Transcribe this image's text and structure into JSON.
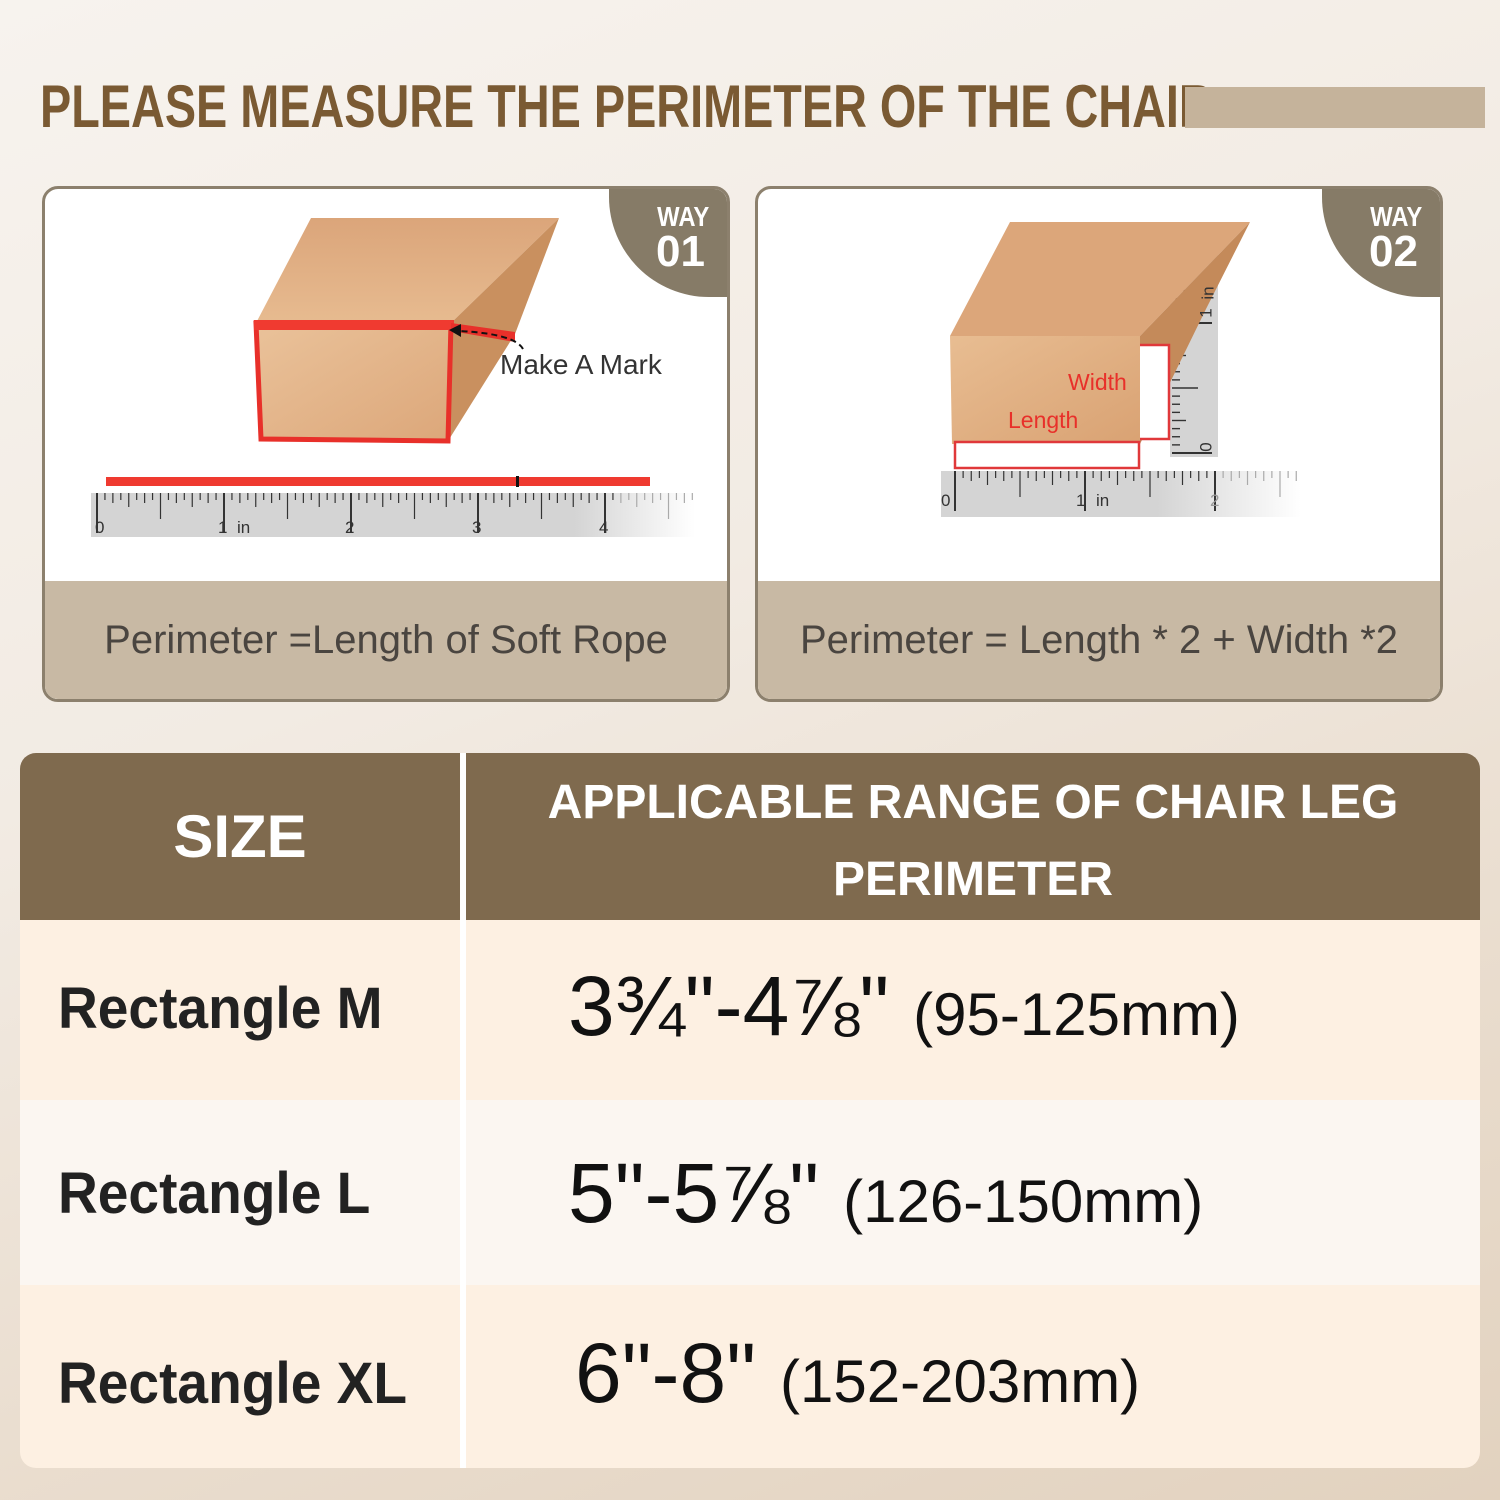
{
  "title": "PLEASE MEASURE THE PERIMETER OF THE CHAIR",
  "colors": {
    "brand_brown": "#7f6a4e",
    "title_brown": "#7a5a33",
    "accent_red": "#e8302a",
    "caption_bg": "#c8b9a4"
  },
  "ways": [
    {
      "badge_word": "WAY",
      "badge_number": "01",
      "annotation": "Make A Mark",
      "caption": "Perimeter =Length of Soft Rope",
      "ruler_labels": [
        "0",
        "1",
        "in",
        "2",
        "3",
        "4"
      ]
    },
    {
      "badge_word": "WAY",
      "badge_number": "02",
      "width_label": "Width",
      "length_label": "Length",
      "caption": "Perimeter = Length * 2 + Width *2",
      "ruler_labels": [
        "0",
        "1",
        "in",
        "2"
      ],
      "vertical_ruler_labels": [
        "0",
        "1",
        "in"
      ]
    }
  ],
  "table": {
    "headers": {
      "size": "SIZE",
      "range_line1": "APPLICABLE RANGE OF CHAIR LEG",
      "range_line2": "PERIMETER"
    },
    "rows": [
      {
        "size": "Rectangle M",
        "inches": "3¾\"-4⅞\"",
        "mm": "(95-125mm)"
      },
      {
        "size": "Rectangle L",
        "inches": "5\"-5⅞\"",
        "mm": "(126-150mm)"
      },
      {
        "size": "Rectangle XL",
        "inches": "6\"-8\"",
        "mm": "(152-203mm)"
      }
    ]
  }
}
